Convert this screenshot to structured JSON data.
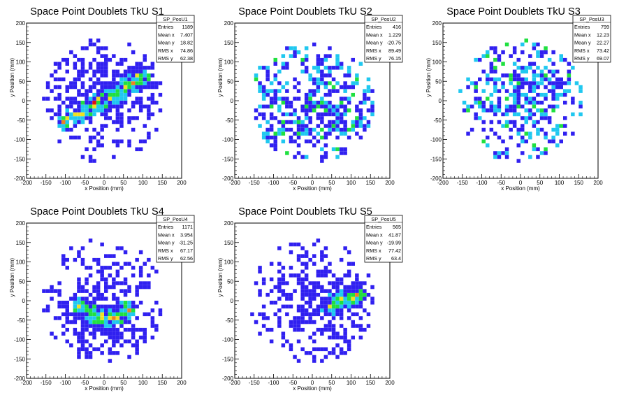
{
  "chart_data": [
    {
      "type": "heatmap",
      "title": "Space Point Doublets TkU S1",
      "xlabel": "x Position (mm)",
      "ylabel": "y Position (mm)",
      "xlim": [
        -200,
        200
      ],
      "ylim": [
        -200,
        200
      ],
      "x_ticks": [
        "-200",
        "-150",
        "-100",
        "-50",
        "0",
        "50",
        "100",
        "150",
        "200"
      ],
      "y_ticks": [
        "-200",
        "-150",
        "-100",
        "-50",
        "0",
        "50",
        "100",
        "150",
        "200"
      ],
      "stats": {
        "name": "SP_PosU1",
        "entries": "1189",
        "mean_x": "7.407",
        "mean_y": "18.82",
        "rms_x": "74.86",
        "rms_y": "62.38"
      },
      "stat_labels": {
        "entries": "Entries",
        "mean_x": "Mean x",
        "mean_y": "Mean y",
        "rms_x": "RMS x",
        "rms_y": "RMS y"
      },
      "pattern": {
        "mean_x": 7.4,
        "mean_y": 18.8,
        "rms_x": 74.9,
        "rms_y": 62.4,
        "band": [
          {
            "x": -100,
            "y": -55
          },
          {
            "x": -50,
            "y": -25
          },
          {
            "x": 0,
            "y": 5
          },
          {
            "x": 50,
            "y": 30
          },
          {
            "x": 100,
            "y": 60
          }
        ]
      }
    },
    {
      "type": "heatmap",
      "title": "Space Point Doublets TkU S2",
      "xlabel": "x Position (mm)",
      "ylabel": "y Position (mm)",
      "xlim": [
        -200,
        200
      ],
      "ylim": [
        -200,
        200
      ],
      "x_ticks": [
        "-200",
        "-150",
        "-100",
        "-50",
        "0",
        "50",
        "100",
        "150",
        "200"
      ],
      "y_ticks": [
        "-200",
        "-150",
        "-100",
        "-50",
        "0",
        "50",
        "100",
        "150",
        "200"
      ],
      "stats": {
        "name": "SP_PosU2",
        "entries": "416",
        "mean_x": "1.229",
        "mean_y": "-20.75",
        "rms_x": "89.49",
        "rms_y": "76.15"
      },
      "stat_labels": {
        "entries": "Entries",
        "mean_x": "Mean x",
        "mean_y": "Mean y",
        "rms_x": "RMS x",
        "rms_y": "RMS y"
      },
      "pattern": {
        "mean_x": 1.2,
        "mean_y": -20.8,
        "rms_x": 89.5,
        "rms_y": 76.2,
        "band": []
      }
    },
    {
      "type": "heatmap",
      "title": "Space Point Doublets TkU S3",
      "xlabel": "x Position (mm)",
      "ylabel": "y Position (mm)",
      "xlim": [
        -200,
        200
      ],
      "ylim": [
        -200,
        200
      ],
      "x_ticks": [
        "-200",
        "-150",
        "-100",
        "-50",
        "0",
        "50",
        "100",
        "150",
        "200"
      ],
      "y_ticks": [
        "-200",
        "-150",
        "-100",
        "-50",
        "0",
        "50",
        "100",
        "150",
        "200"
      ],
      "stats": {
        "name": "SP_PosU3",
        "entries": "799",
        "mean_x": "12.23",
        "mean_y": "22.27",
        "rms_x": "73.42",
        "rms_y": "69.07"
      },
      "stat_labels": {
        "entries": "Entries",
        "mean_x": "Mean x",
        "mean_y": "Mean y",
        "rms_x": "RMS x",
        "rms_y": "RMS y"
      },
      "pattern": {
        "mean_x": 12.2,
        "mean_y": 22.3,
        "rms_x": 73.4,
        "rms_y": 69.1,
        "band": []
      }
    },
    {
      "type": "heatmap",
      "title": "Space Point Doublets TkU S4",
      "xlabel": "x Position (mm)",
      "ylabel": "y Position (mm)",
      "xlim": [
        -200,
        200
      ],
      "ylim": [
        -200,
        200
      ],
      "x_ticks": [
        "-200",
        "-150",
        "-100",
        "-50",
        "0",
        "50",
        "100",
        "150",
        "200"
      ],
      "y_ticks": [
        "-200",
        "-150",
        "-100",
        "-50",
        "0",
        "50",
        "100",
        "150",
        "200"
      ],
      "stats": {
        "name": "SP_PosU4",
        "entries": "1171",
        "mean_x": "3.954",
        "mean_y": "-31.25",
        "rms_x": "67.17",
        "rms_y": "62.56"
      },
      "stat_labels": {
        "entries": "Entries",
        "mean_x": "Mean x",
        "mean_y": "Mean y",
        "rms_x": "RMS x",
        "rms_y": "RMS y"
      },
      "pattern": {
        "mean_x": 4.0,
        "mean_y": -31.3,
        "rms_x": 67.2,
        "rms_y": 62.6,
        "band": [
          {
            "x": -60,
            "y": -15
          },
          {
            "x": -30,
            "y": -35
          },
          {
            "x": 0,
            "y": -45
          },
          {
            "x": 30,
            "y": -40
          },
          {
            "x": 60,
            "y": -25
          }
        ]
      }
    },
    {
      "type": "heatmap",
      "title": "Space Point Doublets TkU S5",
      "xlabel": "x Position (mm)",
      "ylabel": "y Position (mm)",
      "xlim": [
        -200,
        200
      ],
      "ylim": [
        -200,
        200
      ],
      "x_ticks": [
        "-200",
        "-150",
        "-100",
        "-50",
        "0",
        "50",
        "100",
        "150",
        "200"
      ],
      "y_ticks": [
        "-200",
        "-150",
        "-100",
        "-50",
        "0",
        "50",
        "100",
        "150",
        "200"
      ],
      "stats": {
        "name": "SP_PosU5",
        "entries": "565",
        "mean_x": "41.87",
        "mean_y": "-19.99",
        "rms_x": "77.42",
        "rms_y": "63.4"
      },
      "stat_labels": {
        "entries": "Entries",
        "mean_x": "Mean x",
        "mean_y": "Mean y",
        "rms_x": "RMS x",
        "rms_y": "RMS y"
      },
      "pattern": {
        "mean_x": 41.9,
        "mean_y": -20.0,
        "rms_x": 77.4,
        "rms_y": 63.4,
        "band": [
          {
            "x": 40,
            "y": -15
          },
          {
            "x": 80,
            "y": 5
          },
          {
            "x": 120,
            "y": 15
          }
        ]
      }
    }
  ],
  "colors": {
    "low": "#3020f0",
    "cyan": "#20c8f0",
    "green": "#20e040",
    "yellow": "#f0e020",
    "orange": "#f08020",
    "red": "#e01010"
  }
}
